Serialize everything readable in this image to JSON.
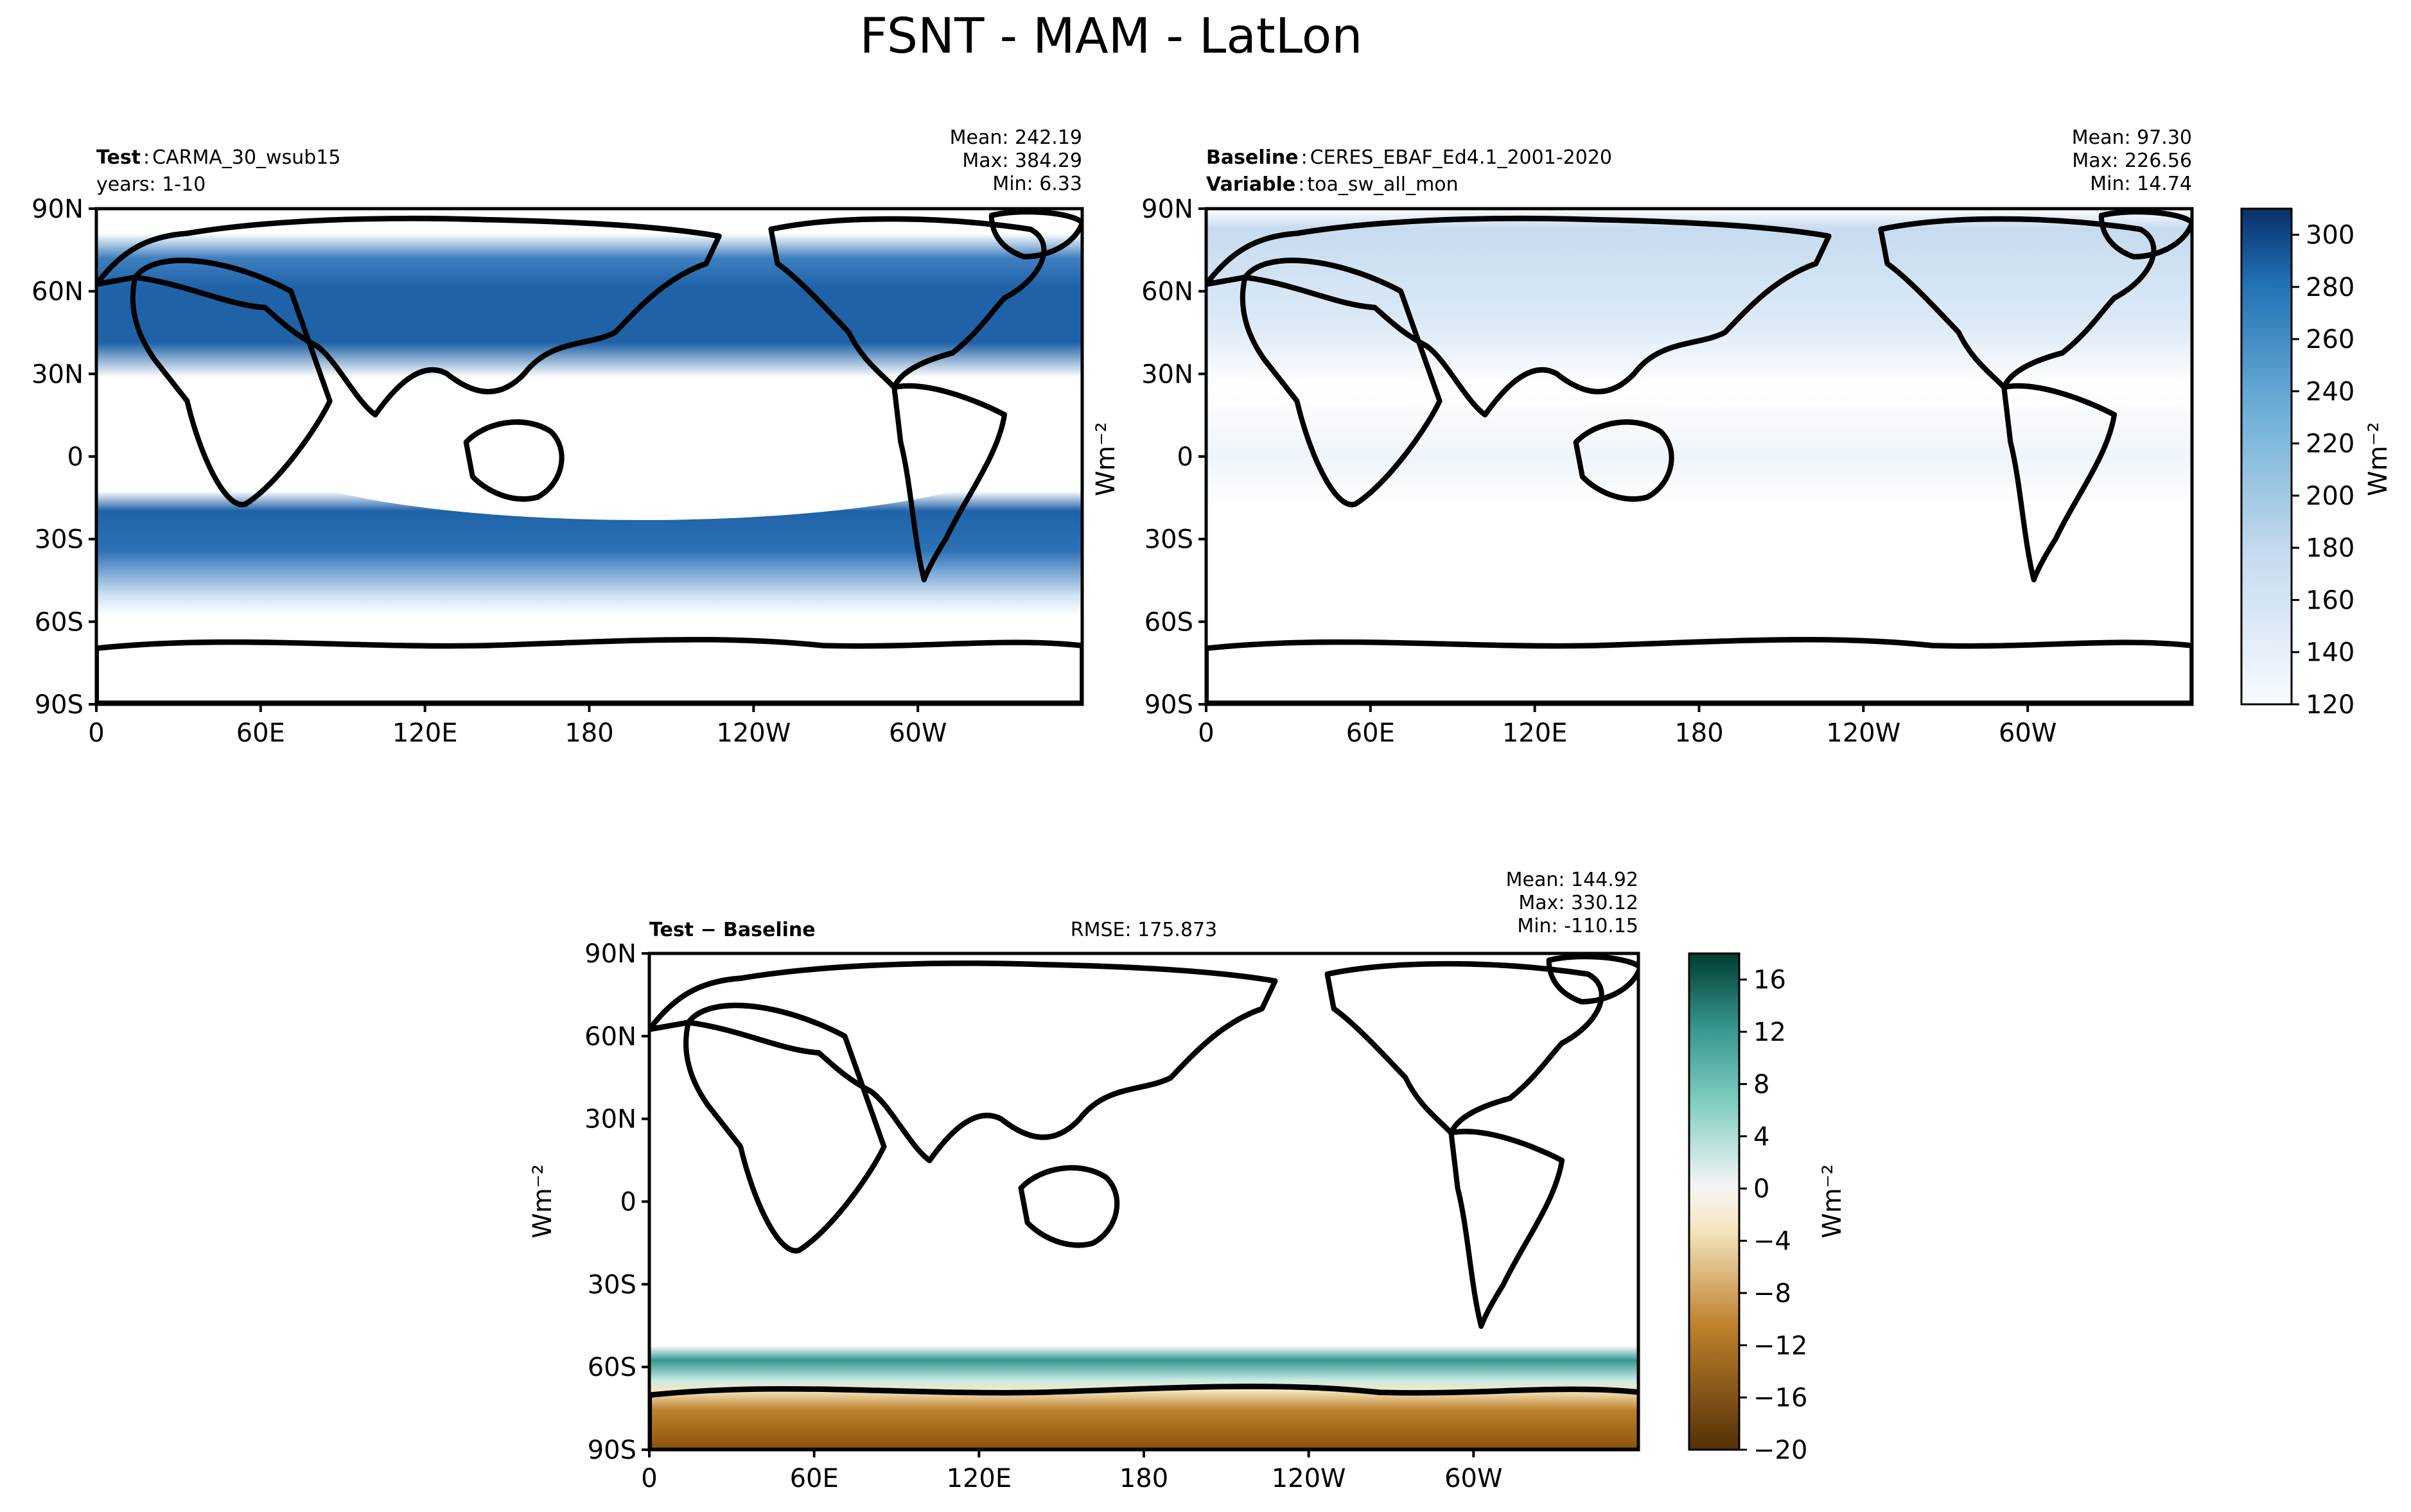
{
  "figure": {
    "title": "FSNT - MAM - LatLon"
  },
  "panels": [
    {
      "id": "test",
      "label_bold": "Test",
      "label_sep": ":",
      "label_value": "CARMA_30_wsub15",
      "label2": "years: 1-10",
      "stats": [
        "Mean: 242.19",
        "Max: 384.29",
        "Min:  6.33"
      ]
    },
    {
      "id": "baseline",
      "label_bold": "Baseline",
      "label_sep": ":",
      "label_value": "CERES_EBAF_Ed4.1_2001-2020",
      "label2_bold": "Variable",
      "label2_sep": ":",
      "label2_value": "toa_sw_all_mon",
      "stats": [
        "Mean: 97.30",
        "Max: 226.56",
        "Min: 14.74"
      ]
    },
    {
      "id": "diff",
      "label_bold": "Test − Baseline",
      "rmse": "RMSE: 175.873",
      "stats": [
        "Mean: 144.92",
        "Max: 330.12",
        "Min: -110.15"
      ]
    }
  ],
  "axes": {
    "lat_ticks": [
      "90N",
      "60N",
      "30N",
      "0",
      "30S",
      "60S",
      "90S"
    ],
    "lon_ticks": [
      "0",
      "60E",
      "120E",
      "180",
      "120W",
      "60W"
    ]
  },
  "colorbars": [
    {
      "id": "cb-top",
      "ticks": [
        "300",
        "280",
        "260",
        "240",
        "220",
        "200",
        "180",
        "160",
        "140",
        "120"
      ],
      "tick_values": [
        300,
        280,
        260,
        240,
        220,
        200,
        180,
        160,
        140,
        120
      ],
      "range": [
        120,
        310
      ],
      "unit": "Wm⁻²",
      "colors": [
        "#f7fbff",
        "#08306b"
      ]
    },
    {
      "id": "cb-bottom",
      "ticks": [
        "16",
        "12",
        "8",
        "4",
        "0",
        "−4",
        "−8",
        "−12",
        "−16",
        "−20"
      ],
      "tick_values": [
        16,
        12,
        8,
        4,
        0,
        -4,
        -8,
        -12,
        -16,
        -20
      ],
      "range": [
        -20,
        18
      ],
      "unit": "Wm⁻²",
      "colors": [
        "#543005",
        "#f5f5f5",
        "#003c30"
      ]
    }
  ],
  "ylabel_left_mid": "Wm⁻²",
  "ylabel_diff": "Wm⁻²",
  "chart_data": [
    {
      "type": "heatmap",
      "title": "",
      "subtitle": "Test: CARMA_30_wsub15, years: 1-10",
      "xlabel": "",
      "ylabel": "",
      "x_ticks": [
        "0",
        "60E",
        "120E",
        "180",
        "120W",
        "60W"
      ],
      "y_ticks": [
        "90N",
        "60N",
        "30N",
        "0",
        "30S",
        "60S",
        "90S"
      ],
      "mean": 242.19,
      "max": 384.29,
      "min": 6.33,
      "colorbar_range": [
        120,
        310
      ],
      "colormap": "blues"
    },
    {
      "type": "heatmap",
      "title": "",
      "subtitle": "Baseline: CERES_EBAF_Ed4.1_2001-2020, Variable: toa_sw_all_mon",
      "xlabel": "",
      "ylabel": "Wm⁻²",
      "x_ticks": [
        "0",
        "60E",
        "120E",
        "180",
        "120W",
        "60W"
      ],
      "y_ticks": [
        "90N",
        "60N",
        "30N",
        "0",
        "30S",
        "60S",
        "90S"
      ],
      "mean": 97.3,
      "max": 226.56,
      "min": 14.74,
      "colorbar_range": [
        120,
        310
      ],
      "colormap": "blues"
    },
    {
      "type": "heatmap",
      "title": "",
      "subtitle": "Test − Baseline",
      "xlabel": "",
      "ylabel": "Wm⁻²",
      "x_ticks": [
        "0",
        "60E",
        "120E",
        "180",
        "120W",
        "60W"
      ],
      "y_ticks": [
        "90N",
        "60N",
        "30N",
        "0",
        "30S",
        "60S",
        "90S"
      ],
      "rmse": 175.873,
      "mean": 144.92,
      "max": 330.12,
      "min": -110.15,
      "colorbar_range": [
        -20,
        18
      ],
      "colormap": "brown-teal diverging"
    }
  ]
}
